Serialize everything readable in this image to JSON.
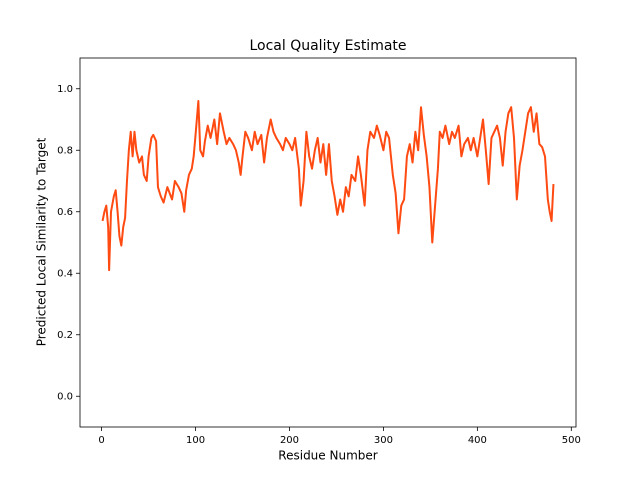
{
  "chart_data": {
    "type": "line",
    "title": "Local Quality Estimate",
    "xlabel": "Residue Number",
    "ylabel": "Predicted Local Similarity to Target",
    "xlim": [
      -23,
      505
    ],
    "xticks": [
      0,
      100,
      200,
      300,
      400,
      500
    ],
    "ylim": [
      -0.1,
      1.1
    ],
    "yticks": [
      {
        "value": 0,
        "label": "0.0"
      },
      {
        "value": 0.2,
        "label": "0.2"
      },
      {
        "value": 0.4,
        "label": "0.4"
      },
      {
        "value": 0.6,
        "label": "0.6"
      },
      {
        "value": 0.8,
        "label": "0.8"
      },
      {
        "value": 1,
        "label": "1.0"
      }
    ],
    "grid": false,
    "series": [
      {
        "color": "#ff4a12",
        "x": [
          1,
          3,
          5,
          7,
          8,
          10,
          13,
          15,
          17,
          19,
          21,
          23,
          25,
          27,
          29,
          31,
          33,
          35,
          37,
          40,
          43,
          45,
          48,
          50,
          53,
          55,
          58,
          60,
          63,
          66,
          70,
          75,
          78,
          82,
          85,
          88,
          90,
          93,
          96,
          98,
          100,
          103,
          105,
          108,
          110,
          113,
          116,
          120,
          123,
          126,
          130,
          133,
          136,
          140,
          143,
          146,
          148,
          150,
          153,
          156,
          160,
          163,
          166,
          170,
          173,
          176,
          180,
          183,
          186,
          190,
          193,
          196,
          200,
          203,
          206,
          210,
          212,
          215,
          218,
          221,
          224,
          227,
          230,
          233,
          236,
          239,
          242,
          245,
          248,
          251,
          254,
          257,
          260,
          263,
          266,
          270,
          273,
          276,
          280,
          283,
          286,
          290,
          293,
          296,
          300,
          303,
          306,
          310,
          313,
          316,
          319,
          322,
          325,
          328,
          331,
          334,
          337,
          340,
          343,
          346,
          349,
          352,
          355,
          358,
          360,
          363,
          366,
          370,
          373,
          376,
          380,
          383,
          386,
          390,
          393,
          396,
          400,
          403,
          406,
          409,
          412,
          415,
          418,
          421,
          424,
          427,
          430,
          433,
          436,
          439,
          442,
          445,
          448,
          451,
          454,
          457,
          460,
          463,
          466,
          469,
          472,
          475,
          477,
          479,
          481
        ],
        "values": [
          0.57,
          0.6,
          0.62,
          0.55,
          0.41,
          0.6,
          0.65,
          0.67,
          0.6,
          0.52,
          0.49,
          0.55,
          0.58,
          0.7,
          0.8,
          0.86,
          0.78,
          0.86,
          0.8,
          0.76,
          0.78,
          0.72,
          0.7,
          0.78,
          0.84,
          0.85,
          0.83,
          0.68,
          0.65,
          0.63,
          0.68,
          0.64,
          0.7,
          0.68,
          0.66,
          0.6,
          0.67,
          0.72,
          0.74,
          0.78,
          0.85,
          0.96,
          0.8,
          0.78,
          0.83,
          0.88,
          0.84,
          0.9,
          0.82,
          0.92,
          0.86,
          0.82,
          0.84,
          0.82,
          0.8,
          0.76,
          0.72,
          0.78,
          0.86,
          0.84,
          0.8,
          0.86,
          0.82,
          0.85,
          0.76,
          0.84,
          0.9,
          0.86,
          0.84,
          0.82,
          0.8,
          0.84,
          0.82,
          0.8,
          0.84,
          0.74,
          0.62,
          0.7,
          0.86,
          0.78,
          0.74,
          0.8,
          0.84,
          0.76,
          0.82,
          0.72,
          0.82,
          0.7,
          0.65,
          0.59,
          0.64,
          0.6,
          0.68,
          0.65,
          0.72,
          0.7,
          0.78,
          0.72,
          0.62,
          0.8,
          0.86,
          0.84,
          0.88,
          0.85,
          0.8,
          0.86,
          0.84,
          0.72,
          0.66,
          0.53,
          0.62,
          0.64,
          0.78,
          0.82,
          0.76,
          0.86,
          0.8,
          0.94,
          0.85,
          0.78,
          0.68,
          0.5,
          0.62,
          0.74,
          0.86,
          0.84,
          0.88,
          0.82,
          0.86,
          0.84,
          0.88,
          0.78,
          0.82,
          0.84,
          0.8,
          0.84,
          0.78,
          0.84,
          0.9,
          0.8,
          0.69,
          0.84,
          0.86,
          0.88,
          0.84,
          0.75,
          0.86,
          0.92,
          0.94,
          0.84,
          0.64,
          0.75,
          0.8,
          0.86,
          0.92,
          0.94,
          0.86,
          0.92,
          0.82,
          0.81,
          0.78,
          0.64,
          0.6,
          0.57,
          0.69
        ]
      }
    ]
  }
}
